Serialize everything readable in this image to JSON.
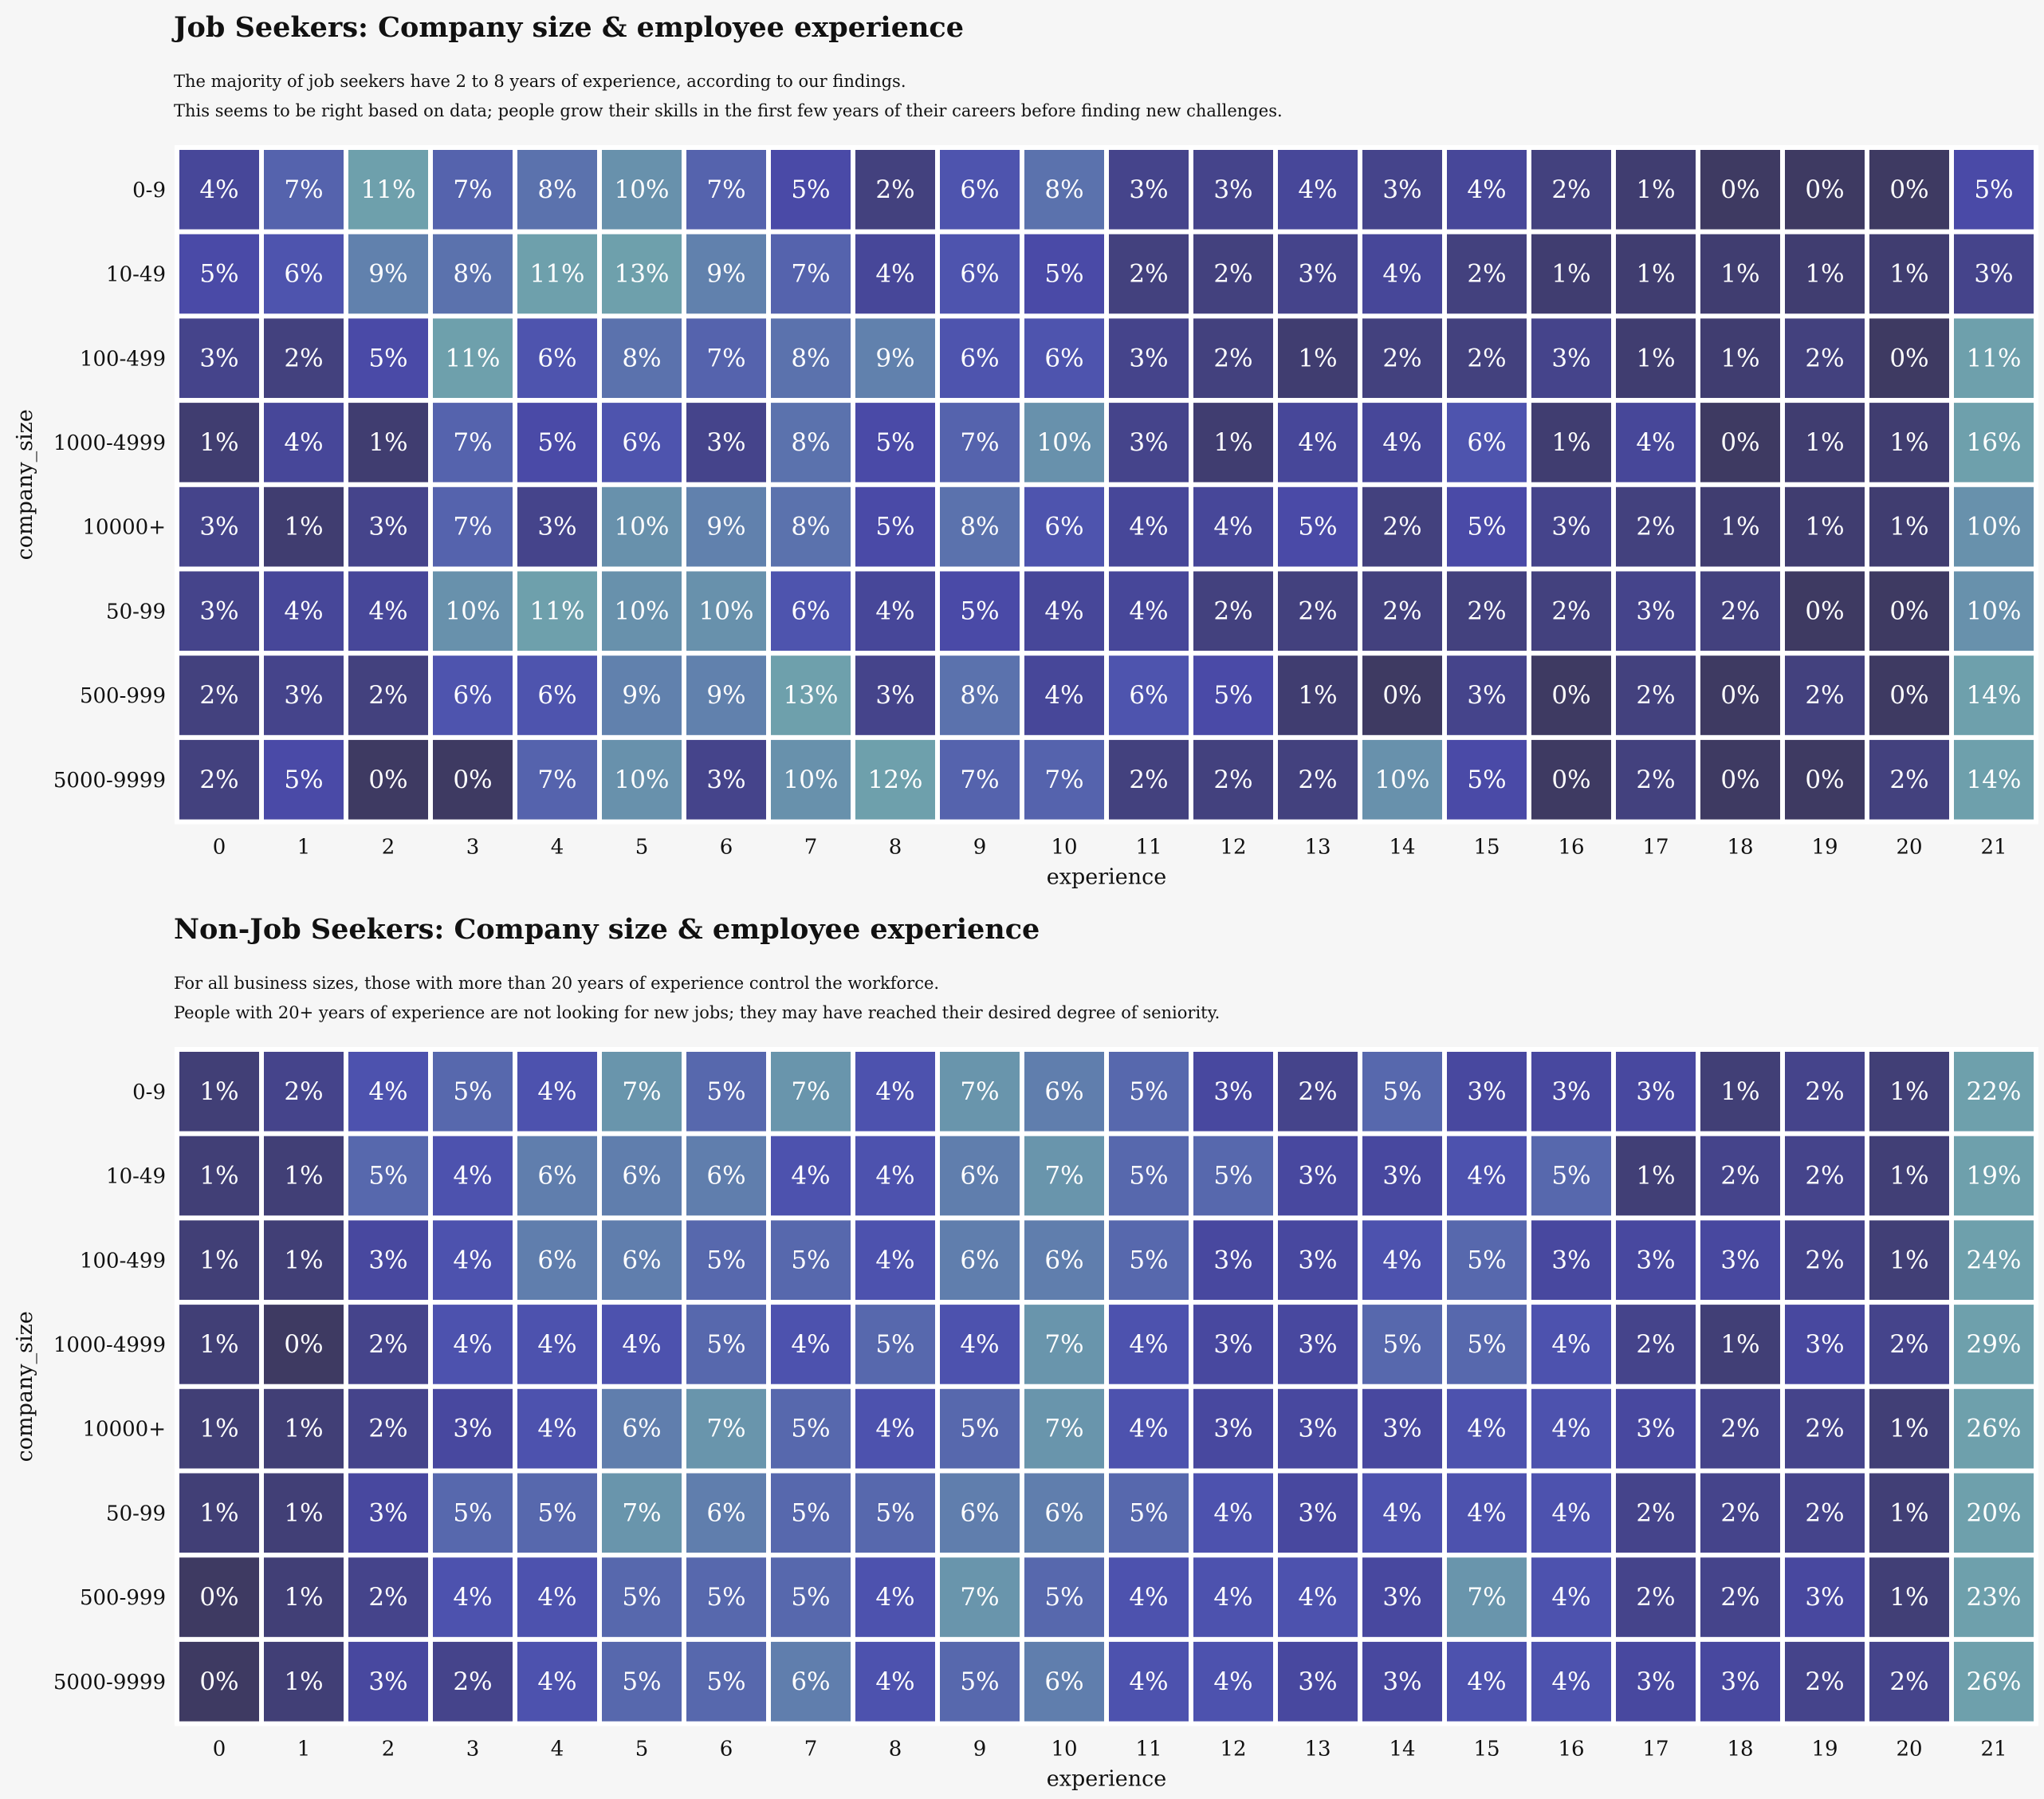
{
  "colors": {
    "background": "#f6f6f6",
    "low": "#3e3a62",
    "mid": "#4b4cae",
    "high": "#6ea0ac",
    "cell_text": "#ffffff",
    "cell_border": "#ffffff"
  },
  "chart_data": [
    {
      "type": "heatmap",
      "title": "Job Seekers: Company size & employee experience",
      "subtitle_lines": [
        "The majority of job seekers have 2 to 8 years of experience, according to our findings.",
        "This seems to be right based on data; people grow their skills in the first few years of their careers before finding new challenges."
      ],
      "xlabel": "experience",
      "ylabel": "company_size",
      "x": [
        "0",
        "1",
        "2",
        "3",
        "4",
        "5",
        "6",
        "7",
        "8",
        "9",
        "10",
        "11",
        "12",
        "13",
        "14",
        "15",
        "16",
        "17",
        "18",
        "19",
        "20",
        "21"
      ],
      "y": [
        "0-9",
        "10-49",
        "100-499",
        "1000-4999",
        "10000+",
        "50-99",
        "500-999",
        "5000-9999"
      ],
      "unit": "%",
      "values": [
        [
          4,
          7,
          11,
          7,
          8,
          10,
          7,
          5,
          2,
          6,
          8,
          3,
          3,
          4,
          3,
          4,
          2,
          1,
          0,
          0,
          0,
          5
        ],
        [
          5,
          6,
          9,
          8,
          11,
          13,
          9,
          7,
          4,
          6,
          5,
          2,
          2,
          3,
          4,
          2,
          1,
          1,
          1,
          1,
          1,
          3
        ],
        [
          3,
          2,
          5,
          11,
          6,
          8,
          7,
          8,
          9,
          6,
          6,
          3,
          2,
          1,
          2,
          2,
          3,
          1,
          1,
          2,
          0,
          11
        ],
        [
          1,
          4,
          1,
          7,
          5,
          6,
          3,
          8,
          5,
          7,
          10,
          3,
          1,
          4,
          4,
          6,
          1,
          4,
          0,
          1,
          1,
          16
        ],
        [
          3,
          1,
          3,
          7,
          3,
          10,
          9,
          8,
          5,
          8,
          6,
          4,
          4,
          5,
          2,
          5,
          3,
          2,
          1,
          1,
          1,
          10
        ],
        [
          3,
          4,
          4,
          10,
          11,
          10,
          10,
          6,
          4,
          5,
          4,
          4,
          2,
          2,
          2,
          2,
          2,
          3,
          2,
          0,
          0,
          10
        ],
        [
          2,
          3,
          2,
          6,
          6,
          9,
          9,
          13,
          3,
          8,
          4,
          6,
          5,
          1,
          0,
          3,
          0,
          2,
          0,
          2,
          0,
          14
        ],
        [
          2,
          5,
          0,
          0,
          7,
          10,
          3,
          10,
          12,
          7,
          7,
          2,
          2,
          2,
          10,
          5,
          0,
          2,
          0,
          0,
          2,
          14
        ]
      ]
    },
    {
      "type": "heatmap",
      "title": "Non-Job Seekers: Company size & employee experience",
      "subtitle_lines": [
        "For all business sizes, those with more than 20 years of experience control the workforce.",
        "People with 20+ years of experience are not looking for new jobs; they may have reached their desired degree of seniority."
      ],
      "xlabel": "experience",
      "ylabel": "company_size",
      "x": [
        "0",
        "1",
        "2",
        "3",
        "4",
        "5",
        "6",
        "7",
        "8",
        "9",
        "10",
        "11",
        "12",
        "13",
        "14",
        "15",
        "16",
        "17",
        "18",
        "19",
        "20",
        "21"
      ],
      "y": [
        "0-9",
        "10-49",
        "100-499",
        "1000-4999",
        "10000+",
        "50-99",
        "500-999",
        "5000-9999"
      ],
      "unit": "%",
      "values": [
        [
          1,
          2,
          4,
          5,
          4,
          7,
          5,
          7,
          4,
          7,
          6,
          5,
          3,
          2,
          5,
          3,
          3,
          3,
          1,
          2,
          1,
          22
        ],
        [
          1,
          1,
          5,
          4,
          6,
          6,
          6,
          4,
          4,
          6,
          7,
          5,
          5,
          3,
          3,
          4,
          5,
          1,
          2,
          2,
          1,
          19
        ],
        [
          1,
          1,
          3,
          4,
          6,
          6,
          5,
          5,
          4,
          6,
          6,
          5,
          3,
          3,
          4,
          5,
          3,
          3,
          3,
          2,
          1,
          24
        ],
        [
          1,
          0,
          2,
          4,
          4,
          4,
          5,
          4,
          5,
          4,
          7,
          4,
          3,
          3,
          5,
          5,
          4,
          2,
          1,
          3,
          2,
          29
        ],
        [
          1,
          1,
          2,
          3,
          4,
          6,
          7,
          5,
          4,
          5,
          7,
          4,
          3,
          3,
          3,
          4,
          4,
          3,
          2,
          2,
          1,
          26
        ],
        [
          1,
          1,
          3,
          5,
          5,
          7,
          6,
          5,
          5,
          6,
          6,
          5,
          4,
          3,
          4,
          4,
          4,
          2,
          2,
          2,
          1,
          20
        ],
        [
          0,
          1,
          2,
          4,
          4,
          5,
          5,
          5,
          4,
          7,
          5,
          4,
          4,
          4,
          3,
          7,
          4,
          2,
          2,
          3,
          1,
          23
        ],
        [
          0,
          1,
          3,
          2,
          4,
          5,
          5,
          6,
          4,
          5,
          6,
          4,
          4,
          3,
          3,
          4,
          4,
          3,
          3,
          2,
          2,
          26
        ]
      ]
    }
  ]
}
